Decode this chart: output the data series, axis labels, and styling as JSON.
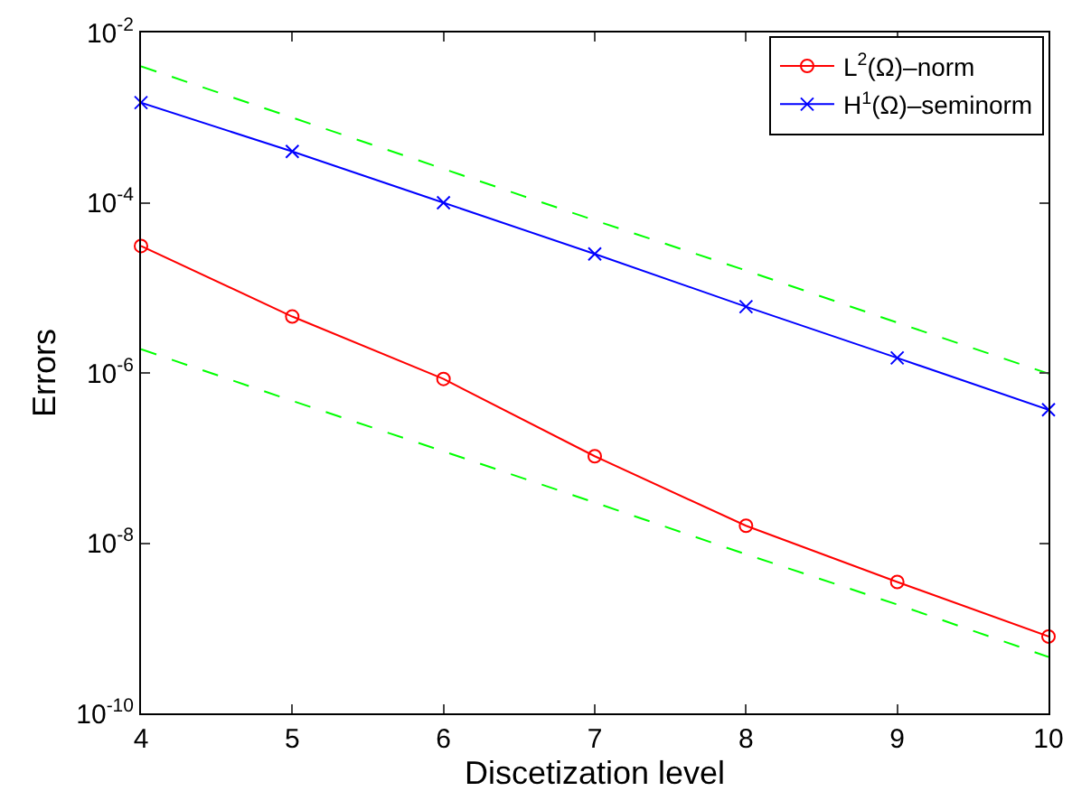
{
  "chart_data": {
    "type": "line",
    "xlabel": "Discetization level",
    "ylabel": "Errors",
    "x": [
      4,
      5,
      6,
      7,
      8,
      9,
      10
    ],
    "series": [
      {
        "name": "L$^{2}$(Ω)–norm",
        "color": "#ff0000",
        "marker": "circle",
        "line_style": "solid",
        "values": [
          3.1e-05,
          4.6e-06,
          8.5e-07,
          1.05e-07,
          1.6e-08,
          3.5e-09,
          8e-10
        ]
      },
      {
        "name": "H$^{1}$(Ω)–seminorm",
        "color": "#0000ff",
        "marker": "cross",
        "line_style": "solid",
        "values": [
          0.0015,
          0.0004,
          0.0001,
          2.5e-05,
          6e-06,
          1.5e-06,
          3.7e-07
        ]
      },
      {
        "color": "#00ff00",
        "marker": "none",
        "line_style": "dashed",
        "values": [
          0.004,
          0.001,
          0.00025,
          6.2e-05,
          1.6e-05,
          3.9e-06,
          9.8e-07
        ]
      },
      {
        "color": "#00ff00",
        "marker": "none",
        "line_style": "dashed",
        "values": [
          1.9e-06,
          4.7e-07,
          1.2e-07,
          3e-08,
          7.4e-09,
          1.9e-09,
          4.6e-10
        ]
      }
    ],
    "log": "y",
    "grid": false,
    "legend": "top right",
    "xlim": [
      4,
      10
    ],
    "xticks": [
      4,
      5,
      6,
      7,
      8,
      9,
      10
    ],
    "ylim": [
      1e-10,
      0.01
    ],
    "yticks": [
      {
        "value": 1e-10,
        "label": "10$^{-10}$"
      },
      {
        "value": 1e-08,
        "label": "10$^{-8}$"
      },
      {
        "value": 1e-06,
        "label": "10$^{-6}$"
      },
      {
        "value": 0.0001,
        "label": "10$^{-4}$"
      },
      {
        "value": 0.01,
        "label": "10$^{-2}$"
      }
    ]
  }
}
